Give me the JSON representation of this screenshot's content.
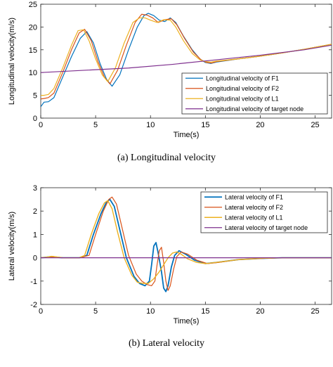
{
  "chart_data": [
    {
      "type": "line",
      "xlabel": "Time(s)",
      "ylabel": "Longitudinal velocity(m/s)",
      "xlim": [
        0,
        26.5
      ],
      "ylim": [
        0,
        25
      ],
      "xticks": [
        0,
        5,
        10,
        15,
        20,
        25
      ],
      "yticks": [
        0,
        5,
        10,
        15,
        20,
        25
      ],
      "grid": false,
      "legend_position": "bottom-right",
      "caption": "(a)  Longitudinal velocity",
      "series": [
        {
          "name": "Longitudinal velocity of F1",
          "color": "#0072BD",
          "width": 1.2,
          "x": [
            0,
            0.3,
            0.7,
            1.2,
            2.0,
            2.8,
            3.6,
            4.2,
            4.8,
            5.4,
            6.0,
            6.5,
            7.2,
            8.0,
            8.8,
            9.4,
            9.8,
            10.3,
            10.8,
            11.3,
            11.8,
            12.3,
            13.0,
            13.8,
            14.5,
            15.0,
            15.5,
            16.0,
            18.0,
            20.0,
            22.0,
            24.0,
            26.5
          ],
          "y": [
            2.5,
            3.5,
            3.6,
            4.5,
            9.0,
            13.5,
            17.5,
            19.0,
            16.5,
            12.0,
            8.5,
            7.0,
            9.5,
            15.0,
            20.0,
            22.5,
            23.0,
            22.5,
            21.5,
            21.2,
            22.0,
            21.0,
            18.0,
            15.0,
            13.0,
            12.2,
            12.0,
            12.3,
            13.0,
            13.6,
            14.3,
            15.1,
            16.2
          ]
        },
        {
          "name": "Longitudinal velocity of F2",
          "color": "#D95319",
          "width": 1.2,
          "x": [
            0,
            0.3,
            0.7,
            1.2,
            2.0,
            2.8,
            3.5,
            4.0,
            4.6,
            5.2,
            5.8,
            6.3,
            7.0,
            7.8,
            8.6,
            9.2,
            9.7,
            10.2,
            10.7,
            11.3,
            11.9,
            12.4,
            13.1,
            13.9,
            14.6,
            15.1,
            15.6,
            16.0,
            18.0,
            20.0,
            22.0,
            24.0,
            26.5
          ],
          "y": [
            4.2,
            4.3,
            4.5,
            5.5,
            10.0,
            15.0,
            18.7,
            19.5,
            17.0,
            12.5,
            9.0,
            7.5,
            10.5,
            16.0,
            21.0,
            22.8,
            22.6,
            22.0,
            21.0,
            21.6,
            21.8,
            20.5,
            17.5,
            14.5,
            12.8,
            12.2,
            12.1,
            12.4,
            13.0,
            13.6,
            14.3,
            15.1,
            16.2
          ]
        },
        {
          "name": "Longitudinal velocity of L1",
          "color": "#EDB120",
          "width": 1.2,
          "x": [
            0,
            0.3,
            0.7,
            1.2,
            2.0,
            2.8,
            3.4,
            3.9,
            4.4,
            5.0,
            5.6,
            6.1,
            6.8,
            7.6,
            8.4,
            9.0,
            9.5,
            10.0,
            10.6,
            11.2,
            11.8,
            12.3,
            13.0,
            13.8,
            14.5,
            15.0,
            15.5,
            16.0,
            18.0,
            20.0,
            22.0,
            24.0,
            26.5
          ],
          "y": [
            5.0,
            5.0,
            5.2,
            6.5,
            11.0,
            16.0,
            19.2,
            19.4,
            17.0,
            13.0,
            9.5,
            8.0,
            11.0,
            16.5,
            21.0,
            22.0,
            22.0,
            21.5,
            21.0,
            21.6,
            21.5,
            20.0,
            17.0,
            14.2,
            12.8,
            12.4,
            12.3,
            12.5,
            13.0,
            13.6,
            14.3,
            15.1,
            16.2
          ]
        },
        {
          "name": "Longitudinal velocity of target node",
          "color": "#7E2F8E",
          "width": 1.2,
          "x": [
            0,
            4,
            8,
            12,
            16,
            20,
            24,
            26.5
          ],
          "y": [
            10.0,
            10.5,
            11.0,
            11.8,
            12.8,
            13.8,
            15.0,
            16.0
          ]
        }
      ]
    },
    {
      "type": "line",
      "xlabel": "Time(s)",
      "ylabel": "Lateral velocity(m/s)",
      "xlim": [
        0,
        26.5
      ],
      "ylim": [
        -2,
        3
      ],
      "xticks": [
        0,
        5,
        10,
        15,
        20,
        25
      ],
      "yticks": [
        -2,
        -1,
        0,
        1,
        2,
        3
      ],
      "grid": false,
      "legend_position": "top-right",
      "caption": "(b)  Lateral velocity",
      "series": [
        {
          "name": "Lateral velocity of F1",
          "color": "#0072BD",
          "width": 1.8,
          "x": [
            0,
            0.5,
            1.0,
            1.5,
            2.0,
            3.5,
            4.2,
            4.8,
            5.5,
            6.0,
            6.3,
            6.7,
            7.2,
            7.8,
            8.5,
            9.0,
            9.5,
            9.9,
            10.1,
            10.3,
            10.5,
            10.7,
            11.0,
            11.2,
            11.4,
            11.6,
            11.9,
            12.2,
            12.6,
            13.2,
            14.0,
            15.0,
            16.0,
            18.0,
            20.0,
            22.0,
            24.0,
            26.5
          ],
          "y": [
            0,
            0.02,
            0.05,
            0.02,
            0,
            0,
            0.1,
            1.0,
            1.9,
            2.4,
            2.5,
            2.2,
            1.2,
            0,
            -0.8,
            -1.1,
            -1.2,
            -1.0,
            -0.3,
            0.5,
            0.65,
            0.2,
            -0.6,
            -1.3,
            -1.45,
            -1.2,
            -0.4,
            0.1,
            0.3,
            0.15,
            -0.1,
            -0.25,
            -0.2,
            -0.08,
            -0.03,
            0,
            0,
            0
          ]
        },
        {
          "name": "Lateral velocity of F2",
          "color": "#D95319",
          "width": 1.2,
          "x": [
            0,
            0.5,
            1.0,
            1.5,
            2.0,
            3.5,
            4.4,
            5.0,
            5.7,
            6.2,
            6.5,
            6.9,
            7.4,
            8.0,
            8.7,
            9.2,
            9.7,
            10.1,
            10.4,
            10.6,
            10.8,
            11.0,
            11.2,
            11.4,
            11.6,
            11.8,
            12.1,
            12.4,
            12.8,
            13.4,
            14.2,
            15.2,
            16.2,
            18.0,
            20.0,
            22.0,
            24.0,
            26.5
          ],
          "y": [
            0,
            0.02,
            0.04,
            0.02,
            0,
            0,
            0.1,
            1.0,
            2.0,
            2.5,
            2.6,
            2.3,
            1.3,
            0.1,
            -0.7,
            -1.0,
            -1.15,
            -1.2,
            -1.0,
            -0.3,
            0.3,
            0.45,
            -0.2,
            -1.0,
            -1.4,
            -1.2,
            -0.5,
            0.05,
            0.25,
            0.15,
            -0.1,
            -0.25,
            -0.2,
            -0.08,
            -0.03,
            0,
            0,
            0
          ]
        },
        {
          "name": "Lateral velocity of L1",
          "color": "#EDB120",
          "width": 1.4,
          "x": [
            0,
            0.5,
            1.0,
            1.5,
            2.0,
            3.5,
            4.0,
            4.6,
            5.3,
            5.8,
            6.1,
            6.5,
            7.0,
            7.6,
            8.3,
            8.8,
            9.3,
            9.8,
            10.3,
            10.8,
            11.2,
            11.6,
            12.0,
            12.4,
            12.8,
            13.4,
            14.2,
            15.0,
            16.0,
            18.0,
            20.0,
            22.0,
            24.0,
            26.5
          ],
          "y": [
            0,
            0.02,
            0.06,
            0.03,
            0,
            0,
            0.1,
            1.0,
            1.9,
            2.35,
            2.45,
            2.1,
            1.1,
            0,
            -0.75,
            -1.05,
            -1.1,
            -1.1,
            -0.9,
            -0.6,
            -0.3,
            0,
            0.2,
            0.25,
            0.15,
            -0.05,
            -0.2,
            -0.25,
            -0.2,
            -0.08,
            -0.03,
            0,
            0,
            0
          ]
        },
        {
          "name": "Lateral velocity of target node",
          "color": "#7E2F8E",
          "width": 1.2,
          "x": [
            0,
            26.5
          ],
          "y": [
            0,
            0
          ]
        }
      ]
    }
  ]
}
